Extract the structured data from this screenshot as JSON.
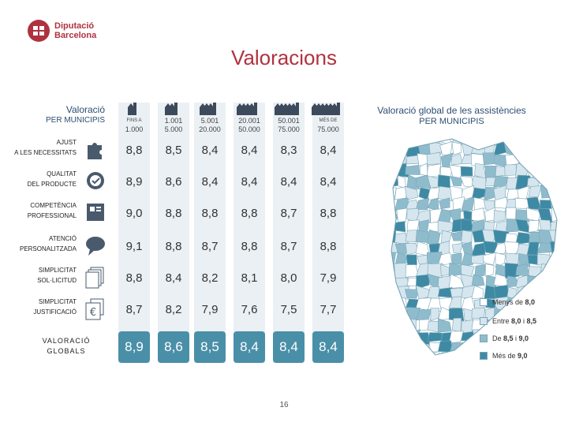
{
  "brand": {
    "line1": "Diputació",
    "line2": "Barcelona"
  },
  "title": "Valoracions",
  "table_heading": {
    "line1": "Valoració",
    "line2": "PER MUNICIPIS"
  },
  "columns": [
    {
      "pre": "FINS A",
      "value": "1.000",
      "icon": "house-icon"
    },
    {
      "pre": "1.001",
      "value": "5.000",
      "icon": "house-icon"
    },
    {
      "pre": "5.001",
      "value": "20.000",
      "icon": "house-icon"
    },
    {
      "pre": "20.001",
      "value": "50.000",
      "icon": "house-icon"
    },
    {
      "pre": "50.001",
      "value": "75.000",
      "icon": "house-icon"
    },
    {
      "pre": "MÉS DE",
      "value": "75.000",
      "icon": "house-icon"
    }
  ],
  "rows": [
    {
      "line1": "AJUST",
      "line2": "A LES NECESSITATS",
      "icon": "puzzle-icon",
      "values": [
        "8,8",
        "8,5",
        "8,4",
        "8,4",
        "8,3",
        "8,4"
      ]
    },
    {
      "line1": "QUALITAT",
      "line2": "DEL PRODUCTE",
      "icon": "quality-badge-icon",
      "values": [
        "8,9",
        "8,6",
        "8,4",
        "8,4",
        "8,4",
        "8,4"
      ]
    },
    {
      "line1": "COMPETÈNCIA",
      "line2": "PROFESSIONAL",
      "icon": "professional-icon",
      "values": [
        "9,0",
        "8,8",
        "8,8",
        "8,8",
        "8,7",
        "8,8"
      ]
    },
    {
      "line1": "ATENCIÓ",
      "line2": "PERSONALITZADA",
      "icon": "speech-bubble-icon",
      "values": [
        "9,1",
        "8,8",
        "8,7",
        "8,8",
        "8,7",
        "8,8"
      ]
    },
    {
      "line1": "SIMPLICITAT",
      "line2": "SOL·LICITUD",
      "icon": "documents-icon",
      "values": [
        "8,8",
        "8,4",
        "8,2",
        "8,1",
        "8,0",
        "7,9"
      ]
    },
    {
      "line1": "SIMPLICITAT",
      "line2": "JUSTIFICACIÓ",
      "icon": "euro-documents-icon",
      "values": [
        "8,7",
        "8,2",
        "7,9",
        "7,6",
        "7,5",
        "7,7"
      ]
    }
  ],
  "global_row": {
    "line1": "VALORACIÓ",
    "line2": "GLOBALS",
    "values": [
      "8,9",
      "8,6",
      "8,5",
      "8,4",
      "8,4",
      "8,4"
    ]
  },
  "map": {
    "title_line1": "Valoració global de les assistències",
    "title_line2": "PER MUNICIPIS",
    "legend": [
      {
        "label_a": "Menys de ",
        "label_b": "8,0",
        "label_c": "",
        "label_d": "",
        "color": "#ffffff"
      },
      {
        "label_a": "Entre ",
        "label_b": "8,0",
        "label_c": " i ",
        "label_d": "8,5",
        "color": "#d6e6ee"
      },
      {
        "label_a": "De ",
        "label_b": "8,5",
        "label_c": " i ",
        "label_d": "9,0",
        "color": "#8fbccd"
      },
      {
        "label_a": "Més de ",
        "label_b": "9,0",
        "label_c": "",
        "label_d": "",
        "color": "#3e8aa4"
      }
    ]
  },
  "page_number": "16",
  "colors": {
    "accent": "#b0323f",
    "navy": "#2b4e72",
    "teal": "#4a8fa8",
    "column_bg": "#eaf0f4"
  }
}
